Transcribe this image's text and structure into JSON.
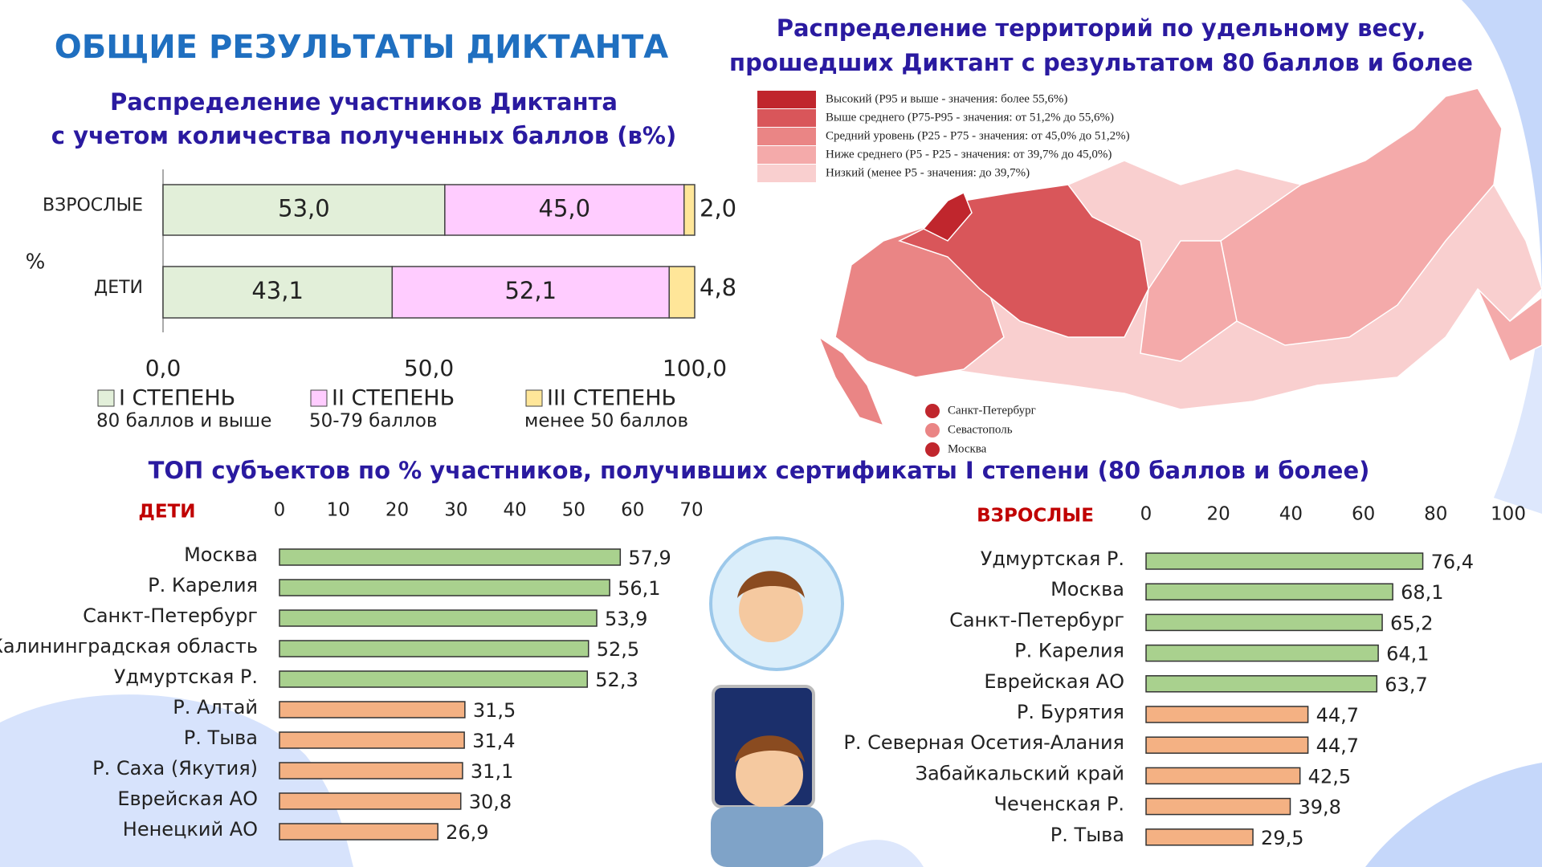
{
  "title": "ОБЩИЕ РЕЗУЛЬТАТЫ ДИКТАНТА",
  "section_title": "ТОП субъектов по % участников, получивших сертификаты I степени (80 баллов и более)",
  "map": {
    "title": [
      "Распределение территорий по удельному весу,",
      "прошедших Диктант с результатом 80 баллов и более"
    ],
    "legend": [
      {
        "label": "Высокий (P95 и выше - значения: более 55,6%)",
        "color": "#c0262d"
      },
      {
        "label": "Выше среднего (P75-P95 - значения: от 51,2% до 55,6%)",
        "color": "#d9565a"
      },
      {
        "label": "Средний уровень (P25 - P75 - значения: от 45,0% до 51,2%)",
        "color": "#ea8585"
      },
      {
        "label": "Ниже среднего (P5 - P25 - значения: от 39,7% до 45,0%)",
        "color": "#f4aaaa"
      },
      {
        "label": "Низкий (менее P5 - значения: до 39,7%)",
        "color": "#f9cfcf"
      }
    ],
    "cities": [
      {
        "label": "Санкт-Петербург",
        "color": "#c0262d"
      },
      {
        "label": "Севастополь",
        "color": "#ea8585"
      },
      {
        "label": "Москва",
        "color": "#c0262d"
      }
    ]
  },
  "chart_data": [
    {
      "type": "stacked_bar",
      "title": [
        "Распределение участников Диктанта",
        "с учетом количества полученных баллов (в%)"
      ],
      "y_label": "%",
      "categories": [
        "ВЗРОСЛЫЕ",
        "ДЕТИ"
      ],
      "series": [
        {
          "name": "I СТЕПЕНЬ",
          "description": "80 баллов и выше",
          "color": "#e2efd9",
          "values": [
            53.0,
            43.1
          ],
          "value_labels": [
            "53,0",
            "43,1"
          ]
        },
        {
          "name": "II СТЕПЕНЬ",
          "description": "50-79 баллов",
          "color": "#ffccff",
          "values": [
            45.0,
            52.1
          ],
          "value_labels": [
            "45,0",
            "52,1"
          ]
        },
        {
          "name": "III СТЕПЕНЬ",
          "description": "менее 50 баллов",
          "color": "#ffe699",
          "values": [
            2.0,
            4.8
          ],
          "value_labels": [
            "2,0",
            "4,8"
          ]
        }
      ],
      "xlim": [
        0,
        100
      ],
      "xticks": [
        {
          "value": 0,
          "label": "0,0"
        },
        {
          "value": 50,
          "label": "50,0"
        },
        {
          "value": 100,
          "label": "100,0"
        }
      ]
    },
    {
      "type": "bar",
      "subtitle": "ДЕТИ",
      "categories": [
        "Москва",
        "Р. Карелия",
        "Санкт-Петербург",
        "Калининградская область",
        "Удмуртская Р.",
        "Р. Алтай",
        "Р. Тыва",
        "Р. Саха (Якутия)",
        "Еврейская АО",
        "Ненецкий АО"
      ],
      "values": [
        57.9,
        56.1,
        53.9,
        52.5,
        52.3,
        31.5,
        31.4,
        31.1,
        30.8,
        26.9
      ],
      "value_labels": [
        "57,9",
        "56,1",
        "53,9",
        "52,5",
        "52,3",
        "31,5",
        "31,4",
        "31,1",
        "30,8",
        "26,9"
      ],
      "colors": [
        "#a9d18e",
        "#a9d18e",
        "#a9d18e",
        "#a9d18e",
        "#a9d18e",
        "#f4b183",
        "#f4b183",
        "#f4b183",
        "#f4b183",
        "#f4b183"
      ],
      "xlim": [
        0,
        70
      ],
      "xticks": [
        0,
        10,
        20,
        30,
        40,
        50,
        60,
        70
      ]
    },
    {
      "type": "bar",
      "subtitle": "ВЗРОСЛЫЕ",
      "categories": [
        "Удмуртская Р.",
        "Москва",
        "Санкт-Петербург",
        "Р. Карелия",
        "Еврейская АО",
        "Р. Бурятия",
        "Р. Северная Осетия-Алания",
        "Забайкальский край",
        "Чеченская Р.",
        "Р. Тыва"
      ],
      "values": [
        76.4,
        68.1,
        65.2,
        64.1,
        63.7,
        44.7,
        44.7,
        42.5,
        39.8,
        29.5
      ],
      "value_labels": [
        "76,4",
        "68,1",
        "65,2",
        "64,1",
        "63,7",
        "44,7",
        "44,7",
        "42,5",
        "39,8",
        "29,5"
      ],
      "colors": [
        "#a9d18e",
        "#a9d18e",
        "#a9d18e",
        "#a9d18e",
        "#a9d18e",
        "#f4b183",
        "#f4b183",
        "#f4b183",
        "#f4b183",
        "#f4b183"
      ],
      "xlim": [
        0,
        100
      ],
      "xticks": [
        0,
        20,
        40,
        60,
        80,
        100
      ]
    }
  ]
}
